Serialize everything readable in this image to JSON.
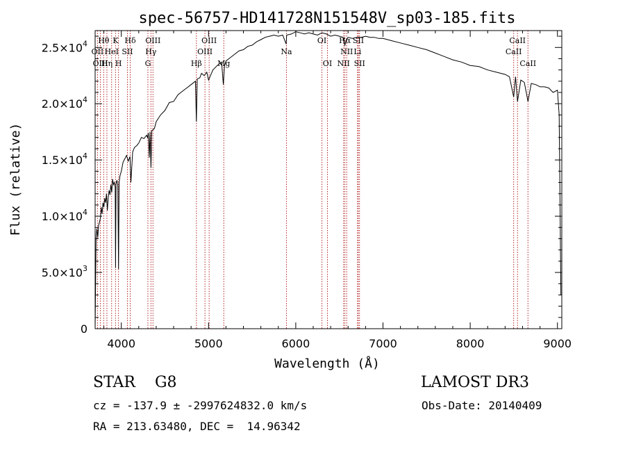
{
  "chart_data": {
    "type": "line",
    "title": "spec-56757-HD141728N151548V_sp03-185.fits",
    "xlabel": "Wavelength (Å)",
    "ylabel": "Flux (relative)",
    "xlim": [
      3700,
      9050
    ],
    "ylim": [
      0,
      26500
    ],
    "x_ticks": [
      {
        "value": 4000,
        "label": "4000"
      },
      {
        "value": 5000,
        "label": "5000"
      },
      {
        "value": 6000,
        "label": "6000"
      },
      {
        "value": 7000,
        "label": "7000"
      },
      {
        "value": 8000,
        "label": "8000"
      },
      {
        "value": 9000,
        "label": "9000"
      }
    ],
    "y_ticks": [
      {
        "value": 0,
        "mant": "0",
        "exp": ""
      },
      {
        "value": 5000,
        "mant": "5.0×10",
        "exp": "3"
      },
      {
        "value": 10000,
        "mant": "1.0×10",
        "exp": "4"
      },
      {
        "value": 15000,
        "mant": "1.5×10",
        "exp": "4"
      },
      {
        "value": 20000,
        "mant": "2.0×10",
        "exp": "4"
      },
      {
        "value": 25000,
        "mant": "2.5×10",
        "exp": "4"
      }
    ],
    "series": [
      {
        "x": [
          3700,
          3710,
          3720,
          3730,
          3740,
          3750,
          3760,
          3770,
          3780,
          3790,
          3800,
          3810,
          3820,
          3830,
          3840,
          3850,
          3860,
          3870,
          3880,
          3890,
          3900,
          3910,
          3920,
          3930,
          3934,
          3940,
          3950,
          3960,
          3968,
          3975,
          3985,
          4000,
          4020,
          4040,
          4060,
          4080,
          4100,
          4110,
          4130,
          4150,
          4180,
          4200,
          4230,
          4260,
          4290,
          4300,
          4310,
          4320,
          4330,
          4340,
          4350,
          4380,
          4400,
          4450,
          4500,
          4550,
          4600,
          4650,
          4700,
          4750,
          4800,
          4850,
          4861,
          4870,
          4900,
          4920,
          4950,
          4980,
          5000,
          5050,
          5100,
          5150,
          5170,
          5183,
          5200,
          5250,
          5300,
          5350,
          5400,
          5450,
          5500,
          5550,
          5600,
          5650,
          5700,
          5750,
          5800,
          5850,
          5890,
          5896,
          5950,
          6000,
          6050,
          6100,
          6150,
          6200,
          6250,
          6300,
          6350,
          6400,
          6450,
          6500,
          6540,
          6563,
          6580,
          6600,
          6650,
          6700,
          6750,
          6800,
          6850,
          6900,
          6950,
          7000,
          7100,
          7200,
          7300,
          7400,
          7500,
          7600,
          7700,
          7800,
          7900,
          8000,
          8100,
          8200,
          8300,
          8400,
          8450,
          8498,
          8520,
          8542,
          8580,
          8620,
          8662,
          8700,
          8750,
          8800,
          8850,
          8900,
          8950,
          9000,
          9020,
          9040
        ],
        "y": [
          0,
          8000,
          8900,
          8100,
          9200,
          9500,
          9800,
          10800,
          10200,
          11200,
          10800,
          11600,
          11200,
          12000,
          10500,
          11600,
          12300,
          11900,
          12800,
          12100,
          13300,
          12800,
          13000,
          12600,
          5400,
          12900,
          13200,
          12700,
          5300,
          13000,
          13600,
          14000,
          14800,
          15100,
          15400,
          14900,
          15300,
          13000,
          15700,
          16100,
          16300,
          16500,
          17000,
          16900,
          17200,
          17000,
          17400,
          15200,
          17500,
          14300,
          17600,
          17800,
          18400,
          19000,
          19400,
          20100,
          20200,
          20800,
          21100,
          21400,
          21700,
          22000,
          18400,
          22200,
          22300,
          22700,
          22500,
          22800,
          22100,
          23000,
          23400,
          23700,
          21700,
          23400,
          23800,
          24100,
          24400,
          24700,
          24800,
          25100,
          25200,
          25500,
          25700,
          25900,
          26000,
          26100,
          26000,
          26100,
          25300,
          26100,
          26200,
          26400,
          26300,
          26200,
          26300,
          26200,
          26100,
          26300,
          26200,
          26000,
          26100,
          26000,
          25900,
          25200,
          25700,
          25900,
          25800,
          25900,
          25900,
          26000,
          25900,
          25900,
          25800,
          25800,
          25600,
          25400,
          25200,
          25000,
          24800,
          24500,
          24200,
          23900,
          23700,
          23400,
          23300,
          23000,
          22800,
          22600,
          22400,
          20600,
          22400,
          20200,
          22100,
          21900,
          20200,
          21800,
          21700,
          21500,
          21500,
          21400,
          21000,
          21200,
          19000,
          3000
        ]
      }
    ],
    "line_labels": [
      {
        "text": "Hθ",
        "row": 0,
        "x": 3798
      },
      {
        "text": "K",
        "row": 0,
        "x": 3934
      },
      {
        "text": "Hδ",
        "row": 0,
        "x": 4102
      },
      {
        "text": "OIII",
        "row": 0,
        "x": 4363
      },
      {
        "text": "OIII",
        "row": 0,
        "x": 5007
      },
      {
        "text": "OI",
        "row": 0,
        "x": 6300
      },
      {
        "text": "Hα",
        "row": 0,
        "x": 6563
      },
      {
        "text": "SII",
        "row": 0,
        "x": 6717
      },
      {
        "text": "CaII",
        "row": 0,
        "x": 8542
      },
      {
        "text": "OII",
        "row": 1,
        "x": 3727
      },
      {
        "text": "HeI",
        "row": 1,
        "x": 3889
      },
      {
        "text": "SII",
        "row": 1,
        "x": 4070
      },
      {
        "text": "Hγ",
        "row": 1,
        "x": 4340
      },
      {
        "text": "OIII",
        "row": 1,
        "x": 4959
      },
      {
        "text": "Na",
        "row": 1,
        "x": 5893
      },
      {
        "text": "NII",
        "row": 1,
        "x": 6584
      },
      {
        "text": "Li",
        "row": 1,
        "x": 6708
      },
      {
        "text": "CaII",
        "row": 1,
        "x": 8498
      },
      {
        "text": "OIII",
        "row": 2,
        "x": 3760
      },
      {
        "text": "Hη",
        "row": 2,
        "x": 3835
      },
      {
        "text": "H",
        "row": 2,
        "x": 3968
      },
      {
        "text": "G",
        "row": 2,
        "x": 4305
      },
      {
        "text": "Hβ",
        "row": 2,
        "x": 4861
      },
      {
        "text": "Mg",
        "row": 2,
        "x": 5175
      },
      {
        "text": "OI",
        "row": 2,
        "x": 6363
      },
      {
        "text": "NII",
        "row": 2,
        "x": 6548
      },
      {
        "text": "SII",
        "row": 2,
        "x": 6731
      },
      {
        "text": "CaII",
        "row": 2,
        "x": 8662
      }
    ],
    "grid": false,
    "colors": {
      "spectrum": "#000000",
      "line_markers": "#b22222"
    }
  },
  "info": {
    "class_line": "STAR    G8",
    "survey": "LAMOST DR3",
    "cz_line": "cz = -137.9 ± -2997624832.0 km/s",
    "obs_date": "Obs-Date: 20140409",
    "radec": "RA = 213.63480, DEC =  14.96342"
  }
}
